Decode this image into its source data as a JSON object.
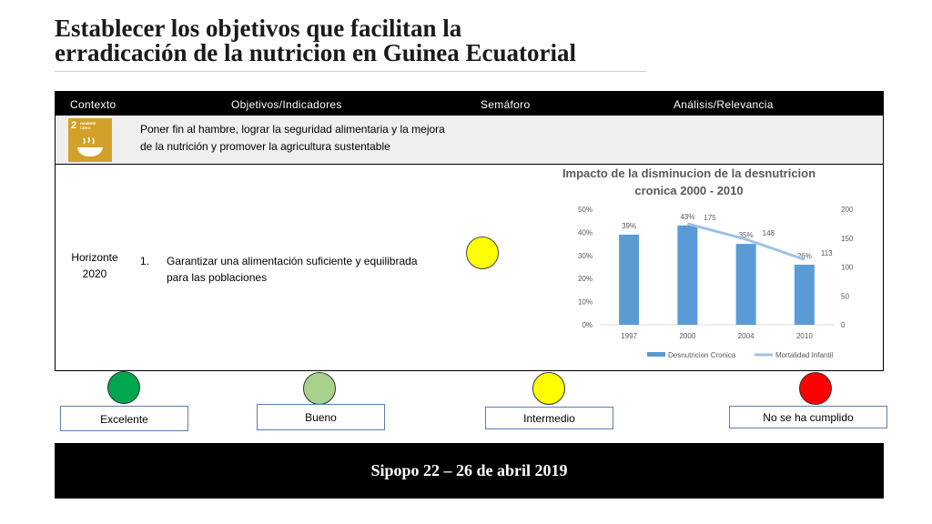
{
  "title": {
    "line1": "Establecer los objetivos que facilitan la",
    "line2": "erradicación de la nutricion en Guinea Ecuatorial"
  },
  "table": {
    "headers": [
      "Contexto",
      "Objetivos/Indicadores",
      "Semáforo",
      "Análisis/Relevancia"
    ],
    "sdg": {
      "number": "2",
      "label": "HAMBRE CERO",
      "color": "#d3a029"
    },
    "goal_text": "Poner fin al hambre, lograr la seguridad alimentaria y la mejora de la nutrición y promover la agricultura sustentable",
    "horizon_line1": "Horizonte",
    "horizon_line2": "2020",
    "objective_number": "1.",
    "objective_text": "Garantizar una alimentación suficiente y equilibrada para las poblaciones",
    "semaforo_color": "#ffff00"
  },
  "chart_data": {
    "type": "bar",
    "title": "Impacto de la disminucion de la desnutricion cronica 2000 - 2010",
    "title_line1": "Impacto de la disminucion de la desnutricion",
    "title_line2": "cronica 2000 - 2010",
    "categories": [
      "1997",
      "2000",
      "2004",
      "2010"
    ],
    "series": [
      {
        "name": "Desnutricion Cronica",
        "type": "bar",
        "axis": "left",
        "values": [
          39,
          43,
          35,
          26
        ],
        "labels": [
          "39%",
          "43%",
          "35%",
          "26%"
        ],
        "color": "#5b9bd5"
      },
      {
        "name": "Mortalidad Infantil",
        "type": "line",
        "axis": "right",
        "values": [
          null,
          175,
          148,
          113
        ],
        "labels": [
          "",
          "175",
          "148",
          "113"
        ],
        "color": "#9dc3e6"
      }
    ],
    "y_left": {
      "min": 0,
      "max": 50,
      "ticks": [
        "0%",
        "10%",
        "20%",
        "30%",
        "40%",
        "50%"
      ]
    },
    "y_right": {
      "min": 0,
      "max": 200,
      "ticks": [
        "0",
        "50",
        "100",
        "150",
        "200"
      ]
    },
    "legend_position": "bottom",
    "grid": false
  },
  "legend": [
    {
      "label": "Excelente",
      "color": "#00a650"
    },
    {
      "label": "Bueno",
      "color": "#a9d18e"
    },
    {
      "label": "Intermedio",
      "color": "#ffff00"
    },
    {
      "label": "No se ha cumplido",
      "color": "#ff0000"
    }
  ],
  "footer": "Sipopo 22 – 26 de abril 2019"
}
